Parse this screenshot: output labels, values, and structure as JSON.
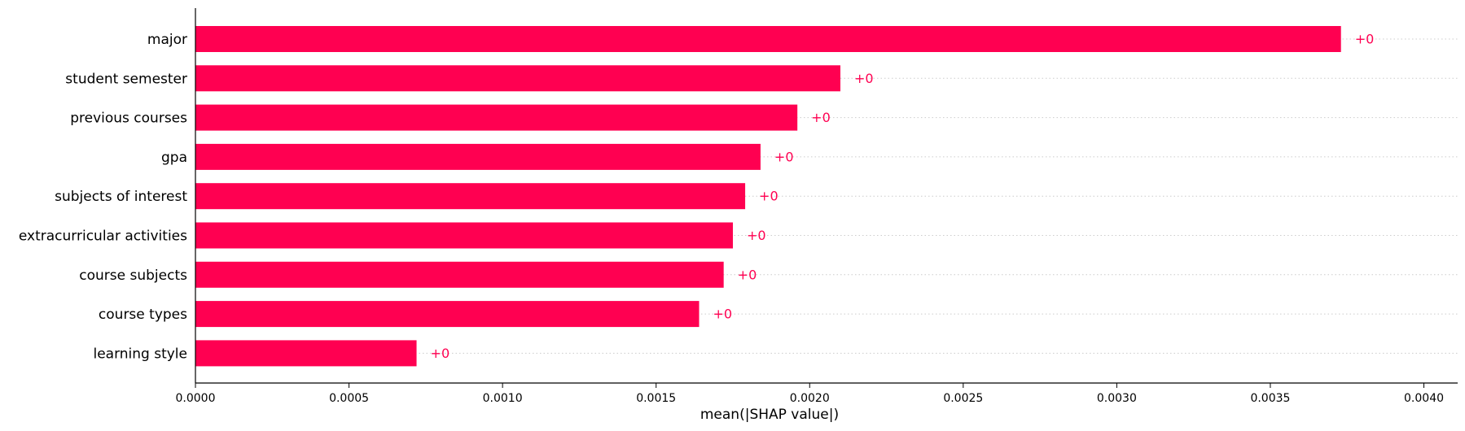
{
  "chart_data": {
    "type": "bar",
    "orientation": "horizontal",
    "categories": [
      "major",
      "student semester",
      "previous courses",
      "gpa",
      "subjects of interest",
      "extracurricular activities",
      "course subjects",
      "course types",
      "learning style"
    ],
    "values": [
      0.00373,
      0.0021,
      0.00196,
      0.00184,
      0.00179,
      0.00175,
      0.00172,
      0.00164,
      0.00072
    ],
    "data_labels": [
      "+0",
      "+0",
      "+0",
      "+0",
      "+0",
      "+0",
      "+0",
      "+0",
      "+0"
    ],
    "xlabel": "mean(|SHAP value|)",
    "ylabel": "",
    "xlim": [
      0,
      0.00411
    ],
    "xticks": [
      0.0,
      0.0005,
      0.001,
      0.0015,
      0.002,
      0.0025,
      0.003,
      0.0035,
      0.004
    ],
    "xtick_labels": [
      "0.0000",
      "0.0005",
      "0.0010",
      "0.0015",
      "0.0020",
      "0.0025",
      "0.0030",
      "0.0035",
      "0.0040"
    ],
    "grid": "dotted row lines",
    "colors": {
      "bar": "#ff0051",
      "label": "#ff0051",
      "gridline": "#cccccc",
      "axis": "#000000"
    }
  }
}
